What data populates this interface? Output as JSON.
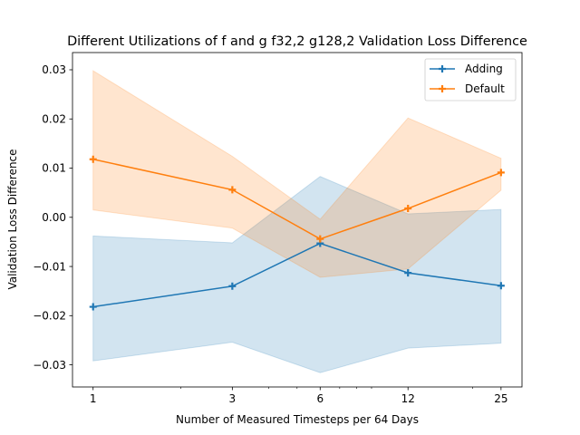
{
  "chart_data": {
    "type": "line",
    "title": "Different Utilizations of f and g f32,2 g128,2 Validation Loss Difference",
    "xlabel": "Number of Measured Timesteps per 64 Days",
    "ylabel": "Validation Loss Difference",
    "x": [
      1,
      3,
      6,
      12,
      25
    ],
    "x_tick_labels": [
      "1",
      "3",
      "6",
      "12",
      "25"
    ],
    "x_scale": "log",
    "xlim": [
      0.85,
      29.5
    ],
    "ylim": [
      -0.0345,
      0.0335
    ],
    "y_ticks": [
      -0.03,
      -0.02,
      -0.01,
      0.0,
      0.01,
      0.02,
      0.03
    ],
    "y_tick_labels": [
      "−0.03",
      "−0.02",
      "−0.01",
      "0.00",
      "0.01",
      "0.02",
      "0.03"
    ],
    "grid": false,
    "legend_position": "top-right",
    "series": [
      {
        "name": "Adding",
        "color": "#1f77b4",
        "values": [
          -0.0182,
          -0.014,
          -0.0053,
          -0.0113,
          -0.0139
        ],
        "upper": [
          -0.0038,
          -0.0052,
          0.0083,
          0.0007,
          0.0016
        ],
        "lower": [
          -0.0292,
          -0.0254,
          -0.0316,
          -0.0266,
          -0.0256
        ]
      },
      {
        "name": "Default",
        "color": "#ff7f0e",
        "values": [
          0.0118,
          0.0056,
          -0.0044,
          0.0018,
          0.0091
        ],
        "upper": [
          0.0298,
          0.0124,
          -0.0004,
          0.0202,
          0.012
        ],
        "lower": [
          0.0015,
          -0.0022,
          -0.0122,
          -0.0105,
          0.0055
        ]
      }
    ]
  }
}
